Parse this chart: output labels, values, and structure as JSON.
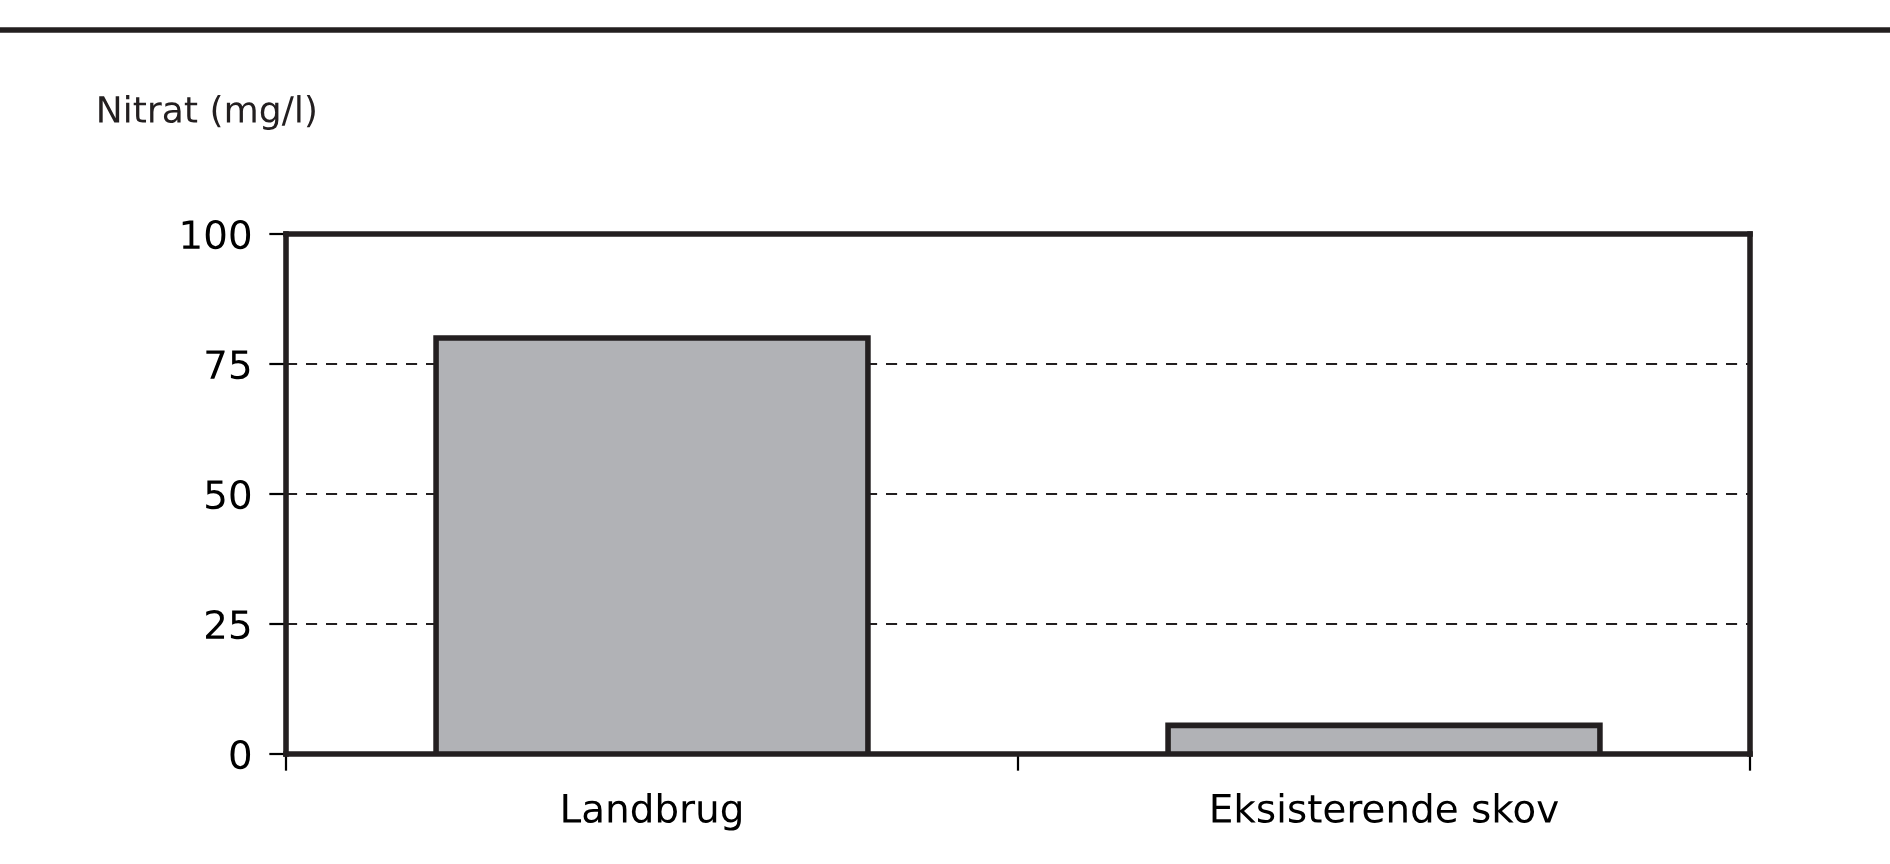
{
  "chart_data": {
    "type": "bar",
    "ylabel": "Nitrat (mg/l)",
    "categories": [
      "Landbrug",
      "Eksisterende skov"
    ],
    "values": [
      80,
      5.5
    ],
    "color": "#b1b2b6",
    "ylim": [
      0,
      100
    ],
    "yticks": [
      0,
      25,
      50,
      75,
      100
    ],
    "grid": "y"
  }
}
